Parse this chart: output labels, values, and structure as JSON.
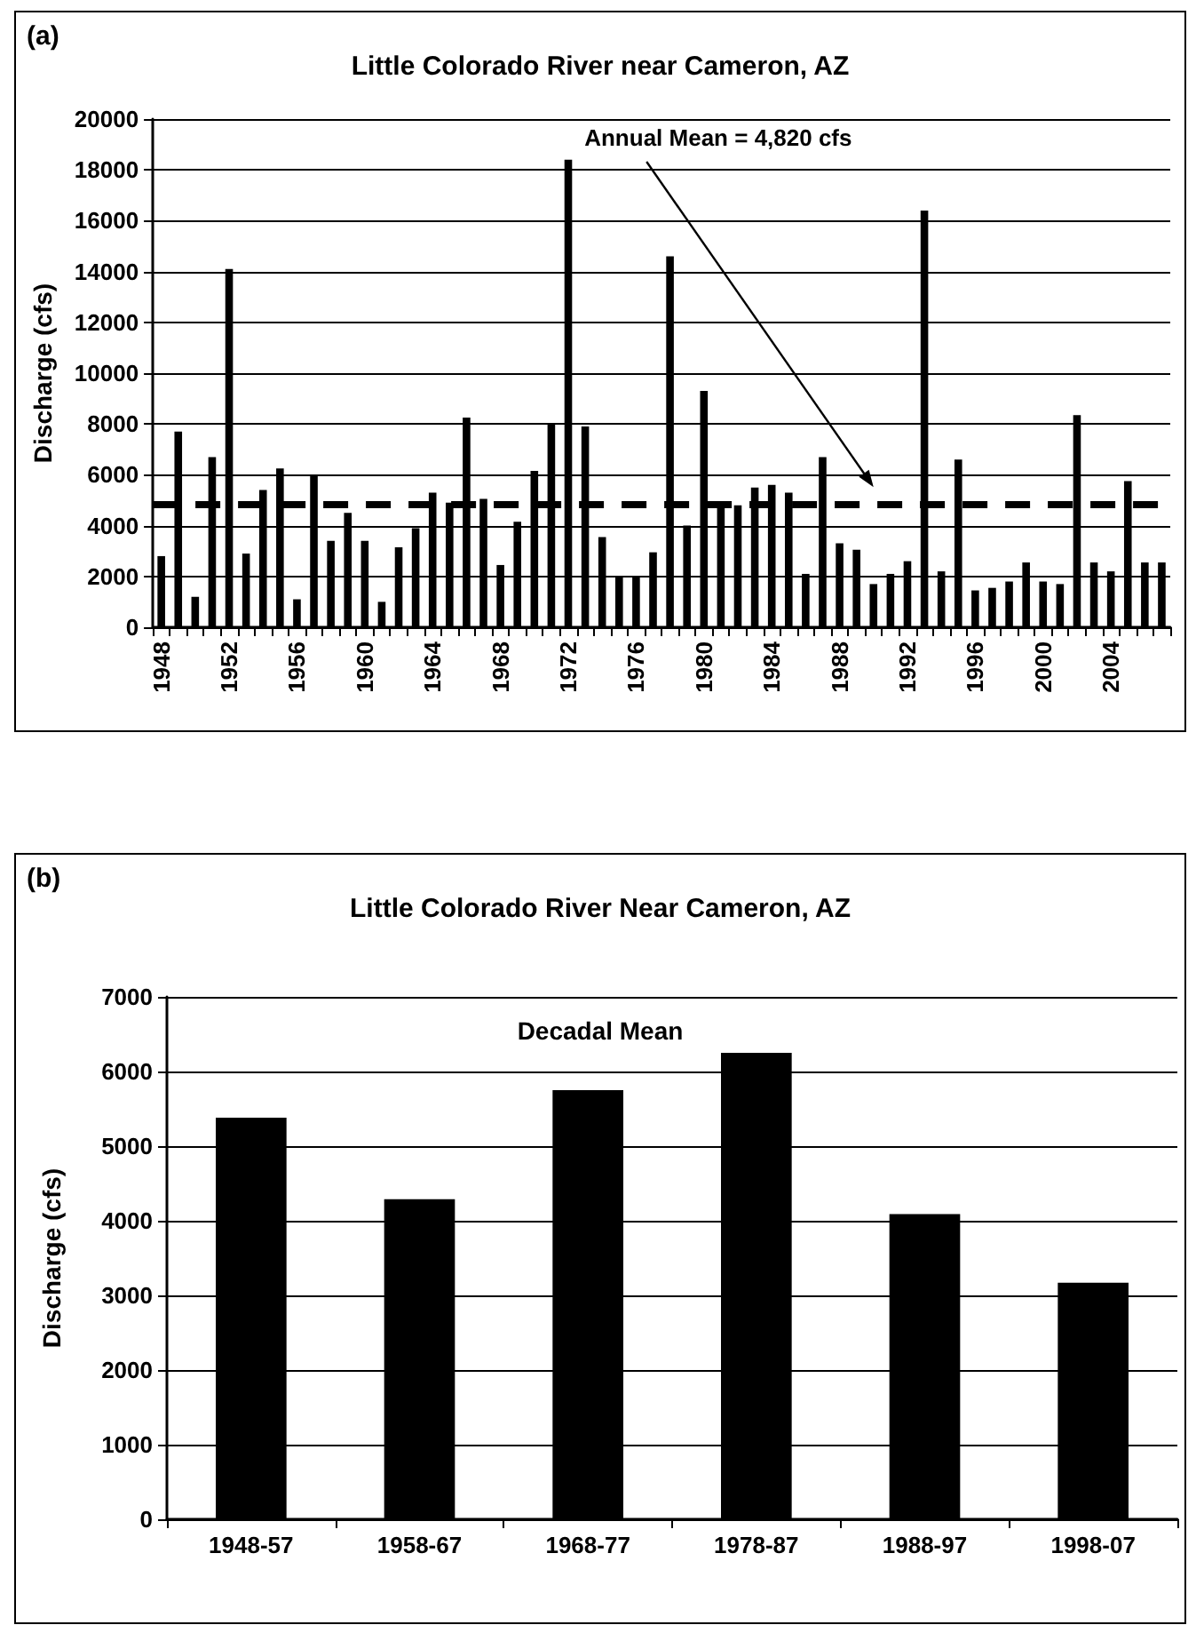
{
  "chart_data": [
    {
      "type": "bar",
      "title": "Little Colorado River near Cameron, AZ",
      "ylabel": "Discharge (cfs)",
      "categories": [
        "1948",
        null,
        null,
        null,
        "1952",
        null,
        null,
        null,
        "1956",
        null,
        null,
        null,
        "1960",
        null,
        null,
        null,
        "1964",
        null,
        null,
        null,
        "1968",
        null,
        null,
        null,
        "1972",
        null,
        null,
        null,
        "1976",
        null,
        null,
        null,
        "1980",
        null,
        null,
        null,
        "1984",
        null,
        null,
        null,
        "1988",
        null,
        null,
        null,
        "1992",
        null,
        null,
        null,
        "1996",
        null,
        null,
        null,
        "2000",
        null,
        null,
        null,
        "2004",
        null,
        null,
        null
      ],
      "values": [
        2800,
        7700,
        1200,
        6700,
        14100,
        2900,
        5400,
        6250,
        1100,
        6000,
        3400,
        4500,
        3400,
        1000,
        3150,
        3900,
        5300,
        4900,
        8250,
        5050,
        2450,
        4150,
        6150,
        8000,
        18400,
        7900,
        3550,
        2000,
        2000,
        2950,
        14600,
        4000,
        9300,
        4800,
        4800,
        5500,
        5600,
        5300,
        2100,
        6700,
        3300,
        3050,
        1700,
        2100,
        2600,
        16400,
        2200,
        6600,
        1450,
        1550,
        1800,
        2550,
        1800,
        1700,
        8350,
        2550,
        2200,
        5750,
        2550,
        2550
      ],
      "color": "#000000",
      "ylim": [
        0,
        20000
      ],
      "yticks": [
        0,
        2000,
        4000,
        6000,
        8000,
        10000,
        12000,
        14000,
        16000,
        18000,
        20000
      ],
      "grid": "y",
      "ref_lines": [
        {
          "axis": "y",
          "value": 4820,
          "label": "Annual Mean = 4,820 cfs",
          "color": "#000000",
          "line_style": "dashed"
        }
      ],
      "annotations": [
        "(a)"
      ]
    },
    {
      "type": "bar",
      "title": "Little Colorado River Near Cameron, AZ",
      "ylabel": "Discharge (cfs)",
      "categories": [
        "1948-57",
        "1958-67",
        "1968-77",
        "1978-87",
        "1988-97",
        "1998-07"
      ],
      "values": [
        5380,
        4290,
        5750,
        6250,
        4090,
        3170
      ],
      "color": "#000000",
      "ylim": [
        0,
        7000
      ],
      "yticks": [
        0,
        1000,
        2000,
        3000,
        4000,
        5000,
        6000,
        7000
      ],
      "grid": "y",
      "annotations": [
        "(b)",
        "Decadal Mean"
      ]
    }
  ]
}
